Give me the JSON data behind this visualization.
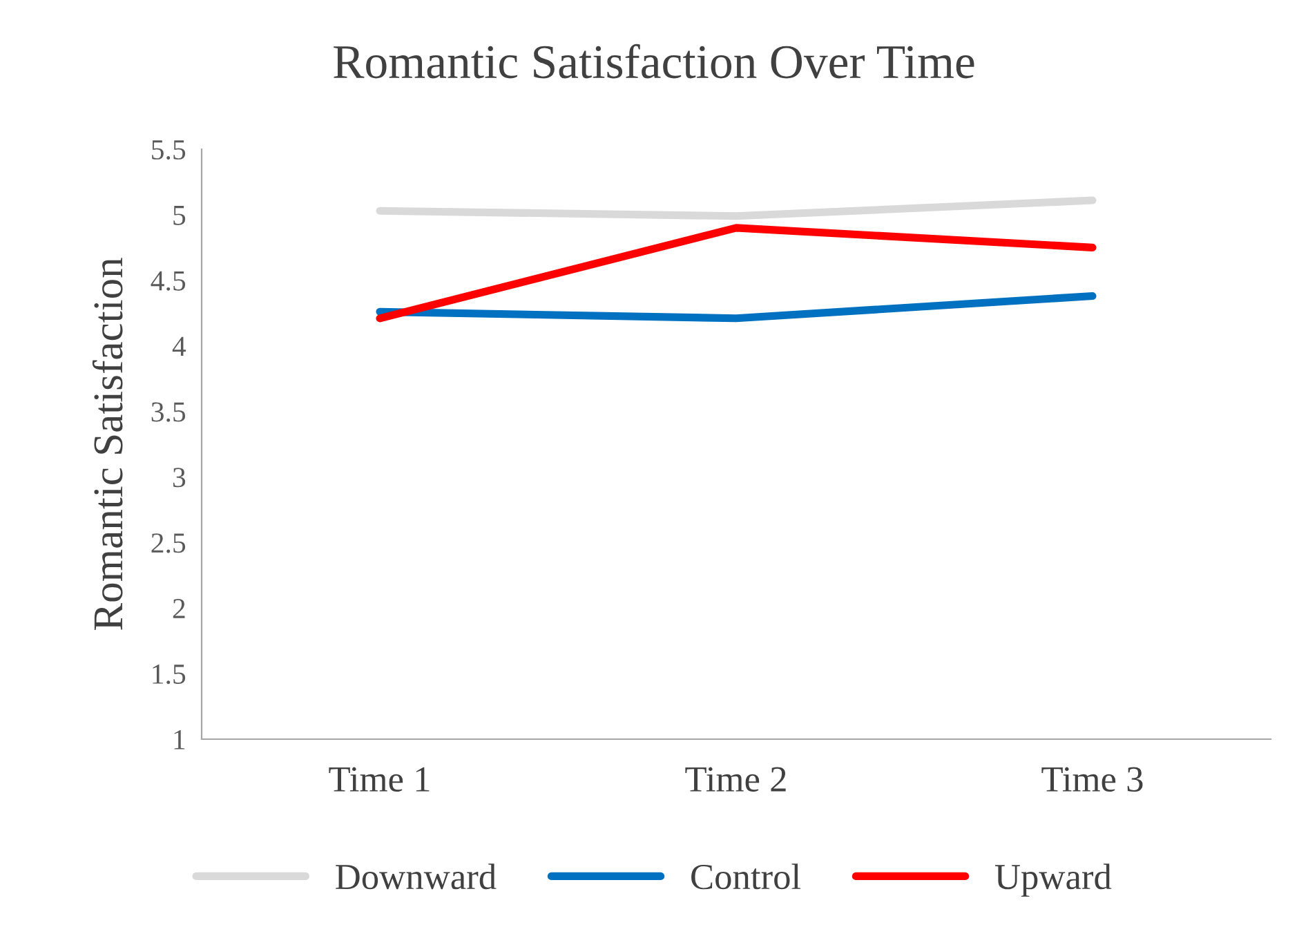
{
  "chart_data": {
    "type": "line",
    "title": "Romantic Satisfaction Over Time",
    "ylabel": "Romantic Satisfaction",
    "categories": [
      "Time 1",
      "Time 2",
      "Time 3"
    ],
    "series": [
      {
        "name": "Downward",
        "color": "#d9d9d9",
        "values": [
          5.03,
          4.99,
          5.11
        ]
      },
      {
        "name": "Control",
        "color": "#0070c0",
        "values": [
          4.26,
          4.21,
          4.38
        ]
      },
      {
        "name": "Upward",
        "color": "#ff0000",
        "values": [
          4.21,
          4.9,
          4.75
        ]
      }
    ],
    "ylim": [
      1,
      5.5
    ],
    "yticks": [
      1,
      1.5,
      2,
      2.5,
      3,
      3.5,
      4,
      4.5,
      5,
      5.5
    ],
    "grid": false,
    "legend": "bottom"
  }
}
